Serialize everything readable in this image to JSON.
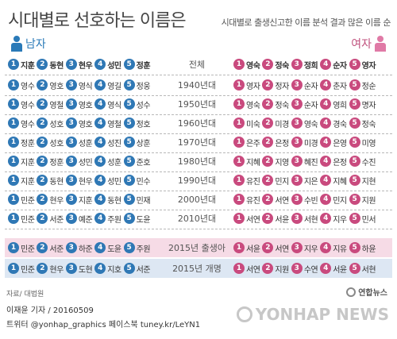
{
  "title": "시대별로 선호하는 이름은",
  "subtitle": "시대별로 출생신고한 이름 분석 결과 많은 이름 순",
  "male_label": "남자",
  "female_label": "여자",
  "header": {
    "label": "전체",
    "male": [
      "지훈",
      "동현",
      "현우",
      "성민",
      "정훈"
    ],
    "female": [
      "영숙",
      "정숙",
      "정희",
      "순자",
      "영자"
    ]
  },
  "rows": [
    {
      "label": "1940년대",
      "male": [
        "영수",
        "영호",
        "영식",
        "영길",
        "정웅"
      ],
      "female": [
        "영자",
        "정자",
        "순자",
        "춘자",
        "정순"
      ]
    },
    {
      "label": "1950년대",
      "male": [
        "영수",
        "영철",
        "영호",
        "영식",
        "성수"
      ],
      "female": [
        "영숙",
        "정숙",
        "순자",
        "영희",
        "명자"
      ]
    },
    {
      "label": "1960년대",
      "male": [
        "영수",
        "성호",
        "영호",
        "영철",
        "정호"
      ],
      "female": [
        "미숙",
        "미경",
        "영숙",
        "경숙",
        "정숙"
      ]
    },
    {
      "label": "1970년대",
      "male": [
        "정훈",
        "성호",
        "성훈",
        "성진",
        "상훈"
      ],
      "female": [
        "은주",
        "은정",
        "미경",
        "은영",
        "미영"
      ]
    },
    {
      "label": "1980년대",
      "male": [
        "지훈",
        "정훈",
        "성민",
        "성훈",
        "준호"
      ],
      "female": [
        "지혜",
        "지영",
        "혜진",
        "은정",
        "수진"
      ]
    },
    {
      "label": "1990년대",
      "male": [
        "지훈",
        "동현",
        "현우",
        "성민",
        "민수"
      ],
      "female": [
        "유진",
        "민지",
        "지은",
        "지혜",
        "지현"
      ]
    },
    {
      "label": "2000년대",
      "male": [
        "민준",
        "현우",
        "지훈",
        "동현",
        "민재"
      ],
      "female": [
        "유진",
        "서연",
        "수빈",
        "민지",
        "지원"
      ]
    },
    {
      "label": "2010년대",
      "male": [
        "민준",
        "서준",
        "예준",
        "주원",
        "도윤"
      ],
      "female": [
        "서연",
        "서윤",
        "서현",
        "지우",
        "민서"
      ]
    }
  ],
  "special": [
    {
      "label": "2015년 출생아",
      "male": [
        "민준",
        "서준",
        "하준",
        "도윤",
        "주원"
      ],
      "female": [
        "서윤",
        "서연",
        "지우",
        "지유",
        "하윤"
      ]
    },
    {
      "label": "2015년 개명",
      "male": [
        "민준",
        "현우",
        "도현",
        "지호",
        "서준"
      ],
      "female": [
        "서연",
        "지원",
        "수연",
        "서윤",
        "서현"
      ]
    }
  ],
  "source": "자료/ 대법원",
  "reporter": "이재윤 기자 / 20160509",
  "sns": "트위터 @yonhap_graphics  페이스북 tuney.kr/LeYN1",
  "logo": "연합뉴스",
  "watermark": "YONHAP NEWS",
  "colors": {
    "male": "#2f78b5",
    "female": "#c94a7e",
    "special_female_bg": "#f6dbe6",
    "special_male_bg": "#dde7f3"
  }
}
